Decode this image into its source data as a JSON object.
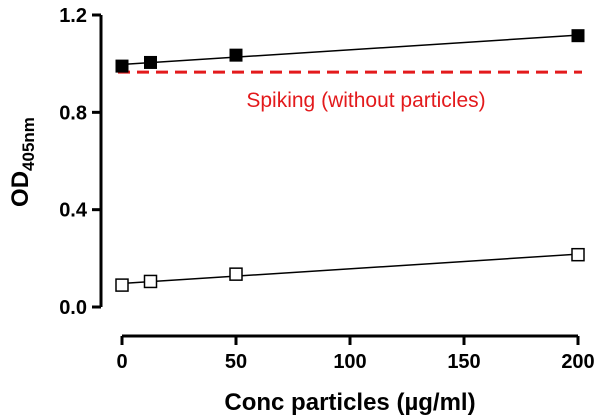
{
  "chart_data": {
    "type": "scatter",
    "title": "",
    "xlabel": "Conc particles (µg/ml)",
    "ylabel": {
      "main": "OD",
      "subscript": "405nm"
    },
    "xlim": [
      0,
      200
    ],
    "ylim": [
      0,
      1.2
    ],
    "x_ticks": [
      0,
      50,
      100,
      150,
      200
    ],
    "y_ticks": [
      0.0,
      0.4,
      0.8,
      1.2
    ],
    "x_tick_labels": [
      "0",
      "50",
      "100",
      "150",
      "200"
    ],
    "y_tick_labels": [
      "0.0",
      "0.4",
      "0.8",
      "1.2"
    ],
    "grid": false,
    "series": [
      {
        "marker": "filled-square",
        "color": "#000000",
        "x": [
          0,
          12.5,
          50,
          200
        ],
        "y": [
          0.99,
          1.005,
          1.035,
          1.115
        ],
        "fit_line": true
      },
      {
        "marker": "open-square",
        "color": "#000000",
        "x": [
          0,
          12.5,
          50,
          200
        ],
        "y": [
          0.09,
          0.105,
          0.135,
          0.215
        ],
        "fit_line": true
      }
    ],
    "reference_lines": [
      {
        "y": 0.965,
        "style": "dashed",
        "color": "#e31a1c",
        "label": "Spiking (without particles)"
      }
    ]
  }
}
